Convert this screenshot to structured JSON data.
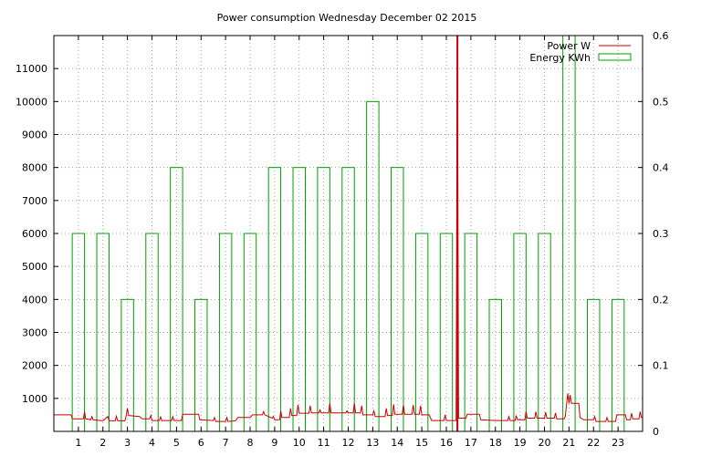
{
  "chart_data": {
    "type": "bar",
    "title": "Power consumption Wednesday December 02 2015",
    "xlabel": "",
    "ylabel": "",
    "y2label": "",
    "grid": true,
    "legend_position": "top-right",
    "xlim": [
      0,
      24
    ],
    "ylim": [
      0,
      12000
    ],
    "y2lim": [
      0,
      0.6
    ],
    "x_ticks": [
      1,
      2,
      3,
      4,
      5,
      6,
      7,
      8,
      9,
      10,
      11,
      12,
      13,
      14,
      15,
      16,
      17,
      18,
      19,
      20,
      21,
      22,
      23
    ],
    "y_ticks": [
      1000,
      2000,
      3000,
      4000,
      5000,
      6000,
      7000,
      8000,
      9000,
      10000,
      11000
    ],
    "y2_ticks": [
      0,
      0.1,
      0.2,
      0.3,
      0.4,
      0.5,
      0.6
    ],
    "series": [
      {
        "name": "Energy KWh",
        "type": "bar",
        "axis": "y2",
        "color": "#00a000",
        "categories": [
          1,
          2,
          3,
          4,
          5,
          6,
          7,
          8,
          9,
          10,
          11,
          12,
          13,
          14,
          15,
          16,
          17,
          18,
          19,
          20,
          21,
          22,
          23
        ],
        "values": [
          0.3,
          0.3,
          0.2,
          0.3,
          0.4,
          0.2,
          0.3,
          0.3,
          0.4,
          0.4,
          0.4,
          0.4,
          0.5,
          0.4,
          0.3,
          0.3,
          0.3,
          0.2,
          0.3,
          0.3,
          0.6,
          0.2,
          0.2
        ]
      },
      {
        "name": "Power W",
        "type": "line",
        "axis": "y",
        "color": "#cc0000",
        "points": [
          [
            0.0,
            500
          ],
          [
            0.7,
            500
          ],
          [
            0.75,
            380
          ],
          [
            1.2,
            380
          ],
          [
            1.25,
            600
          ],
          [
            1.3,
            380
          ],
          [
            1.5,
            350
          ],
          [
            1.55,
            450
          ],
          [
            1.6,
            350
          ],
          [
            2.0,
            320
          ],
          [
            2.2,
            450
          ],
          [
            2.25,
            320
          ],
          [
            2.5,
            320
          ],
          [
            2.55,
            460
          ],
          [
            2.6,
            320
          ],
          [
            2.9,
            320
          ],
          [
            2.95,
            480
          ],
          [
            3.0,
            700
          ],
          [
            3.05,
            480
          ],
          [
            3.5,
            450
          ],
          [
            3.6,
            380
          ],
          [
            3.9,
            380
          ],
          [
            3.95,
            480
          ],
          [
            4.0,
            330
          ],
          [
            4.3,
            330
          ],
          [
            4.35,
            440
          ],
          [
            4.4,
            330
          ],
          [
            4.8,
            330
          ],
          [
            4.85,
            450
          ],
          [
            4.9,
            330
          ],
          [
            5.2,
            330
          ],
          [
            5.25,
            520
          ],
          [
            5.9,
            520
          ],
          [
            5.95,
            350
          ],
          [
            6.5,
            330
          ],
          [
            6.55,
            420
          ],
          [
            6.6,
            300
          ],
          [
            7.0,
            300
          ],
          [
            7.05,
            420
          ],
          [
            7.1,
            300
          ],
          [
            7.4,
            320
          ],
          [
            7.5,
            420
          ],
          [
            8.0,
            420
          ],
          [
            8.1,
            500
          ],
          [
            8.5,
            500
          ],
          [
            8.55,
            600
          ],
          [
            8.6,
            500
          ],
          [
            8.9,
            400
          ],
          [
            8.95,
            450
          ],
          [
            9.0,
            350
          ],
          [
            9.2,
            350
          ],
          [
            9.25,
            620
          ],
          [
            9.3,
            420
          ],
          [
            9.6,
            420
          ],
          [
            9.65,
            700
          ],
          [
            9.7,
            480
          ],
          [
            9.9,
            480
          ],
          [
            9.95,
            800
          ],
          [
            10.0,
            550
          ],
          [
            10.4,
            550
          ],
          [
            10.45,
            780
          ],
          [
            10.5,
            560
          ],
          [
            10.8,
            560
          ],
          [
            10.85,
            650
          ],
          [
            10.9,
            560
          ],
          [
            11.2,
            560
          ],
          [
            11.25,
            850
          ],
          [
            11.3,
            560
          ],
          [
            11.9,
            560
          ],
          [
            11.95,
            620
          ],
          [
            12.0,
            560
          ],
          [
            12.2,
            560
          ],
          [
            12.25,
            850
          ],
          [
            12.3,
            560
          ],
          [
            12.5,
            560
          ],
          [
            12.55,
            780
          ],
          [
            12.6,
            500
          ],
          [
            13.0,
            500
          ],
          [
            13.05,
            620
          ],
          [
            13.1,
            450
          ],
          [
            13.5,
            450
          ],
          [
            13.55,
            700
          ],
          [
            13.6,
            480
          ],
          [
            13.8,
            480
          ],
          [
            13.85,
            820
          ],
          [
            13.9,
            520
          ],
          [
            14.2,
            520
          ],
          [
            14.25,
            800
          ],
          [
            14.3,
            520
          ],
          [
            14.6,
            520
          ],
          [
            14.65,
            800
          ],
          [
            14.7,
            520
          ],
          [
            14.9,
            520
          ],
          [
            14.95,
            780
          ],
          [
            15.0,
            500
          ],
          [
            15.3,
            500
          ],
          [
            15.35,
            420
          ],
          [
            15.4,
            330
          ],
          [
            15.9,
            330
          ],
          [
            15.95,
            500
          ],
          [
            16.0,
            330
          ],
          [
            16.4,
            330
          ],
          [
            16.45,
            12000
          ],
          [
            16.5,
            400
          ],
          [
            16.8,
            400
          ],
          [
            16.85,
            520
          ],
          [
            17.0,
            520
          ],
          [
            17.35,
            520
          ],
          [
            17.4,
            350
          ],
          [
            18.0,
            330
          ],
          [
            18.5,
            330
          ],
          [
            18.55,
            450
          ],
          [
            18.6,
            330
          ],
          [
            18.8,
            330
          ],
          [
            18.85,
            480
          ],
          [
            18.9,
            350
          ],
          [
            19.2,
            350
          ],
          [
            19.25,
            600
          ],
          [
            19.3,
            400
          ],
          [
            19.6,
            400
          ],
          [
            19.65,
            600
          ],
          [
            19.7,
            400
          ],
          [
            20.0,
            400
          ],
          [
            20.05,
            580
          ],
          [
            20.1,
            400
          ],
          [
            20.4,
            400
          ],
          [
            20.45,
            560
          ],
          [
            20.5,
            380
          ],
          [
            20.8,
            380
          ],
          [
            20.85,
            450
          ],
          [
            20.95,
            1150
          ],
          [
            21.0,
            850
          ],
          [
            21.05,
            1100
          ],
          [
            21.1,
            850
          ],
          [
            21.4,
            850
          ],
          [
            21.45,
            420
          ],
          [
            21.6,
            350
          ],
          [
            22.0,
            350
          ],
          [
            22.05,
            450
          ],
          [
            22.1,
            300
          ],
          [
            22.5,
            300
          ],
          [
            22.55,
            420
          ],
          [
            22.6,
            300
          ],
          [
            22.9,
            300
          ],
          [
            22.95,
            500
          ],
          [
            23.3,
            500
          ],
          [
            23.35,
            350
          ],
          [
            23.5,
            350
          ],
          [
            23.55,
            550
          ],
          [
            23.6,
            380
          ],
          [
            23.85,
            380
          ],
          [
            23.9,
            600
          ],
          [
            23.95,
            420
          ],
          [
            24.0,
            420
          ]
        ]
      }
    ]
  }
}
